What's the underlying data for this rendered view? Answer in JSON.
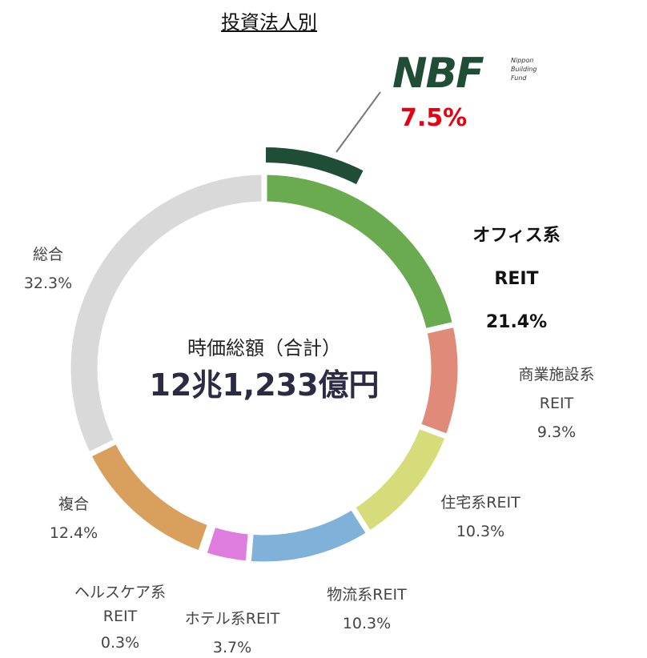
{
  "chart_data": {
    "type": "donut",
    "title": "投資法人別",
    "center_title": "時価総額（合計）",
    "center_value": "12兆1,233億円",
    "categories": [
      "オフィス系REIT",
      "商業施設系REIT",
      "住宅系REIT",
      "物流系REIT",
      "ホテル系REIT",
      "ヘルスケア系REIT",
      "複合",
      "総合"
    ],
    "values": [
      21.4,
      9.3,
      10.3,
      10.3,
      3.7,
      0.3,
      12.4,
      32.3
    ],
    "value_labels": [
      "21.4%",
      "9.3%",
      "10.3%",
      "10.3%",
      "3.7%",
      "0.3%",
      "12.4%",
      "32.3%"
    ],
    "colors": [
      "#6aab4f",
      "#e08b79",
      "#d5dc79",
      "#80b1d9",
      "#df7ddf",
      "#b9a0dc",
      "#d8a05c",
      "#d9d9d9"
    ],
    "highlight": {
      "label": "NBF",
      "sublabel": [
        "Nippon",
        "Building",
        "Fund"
      ],
      "value": 7.5,
      "value_label": "7.5%",
      "color": "#1f4d35"
    }
  }
}
